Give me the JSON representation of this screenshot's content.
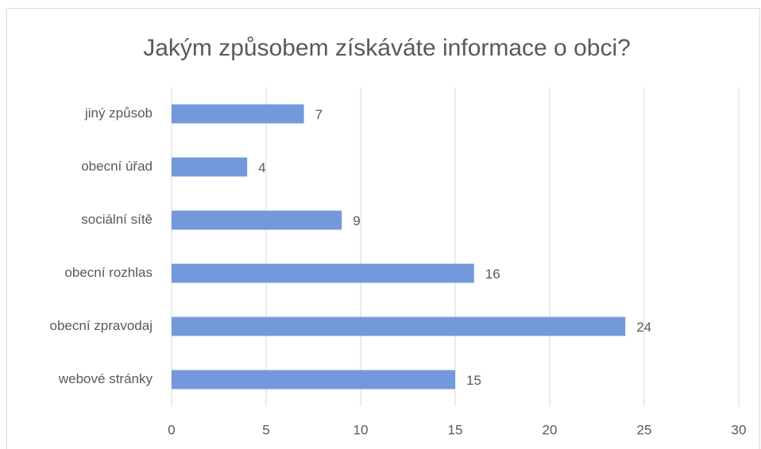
{
  "chart_data": {
    "type": "bar",
    "orientation": "horizontal",
    "title": "Jakým způsobem získáváte informace o obci?",
    "categories": [
      "jiný způsob",
      "obecní úřad",
      "sociální sítě",
      "obecní rozhlas",
      "obecní zpravodaj",
      "webové stránky"
    ],
    "values": [
      7,
      4,
      9,
      16,
      24,
      15
    ],
    "color": "#7399da",
    "xlim": [
      0,
      30
    ],
    "xticks": [
      0,
      5,
      10,
      15,
      20,
      25,
      30
    ],
    "grid": true
  }
}
